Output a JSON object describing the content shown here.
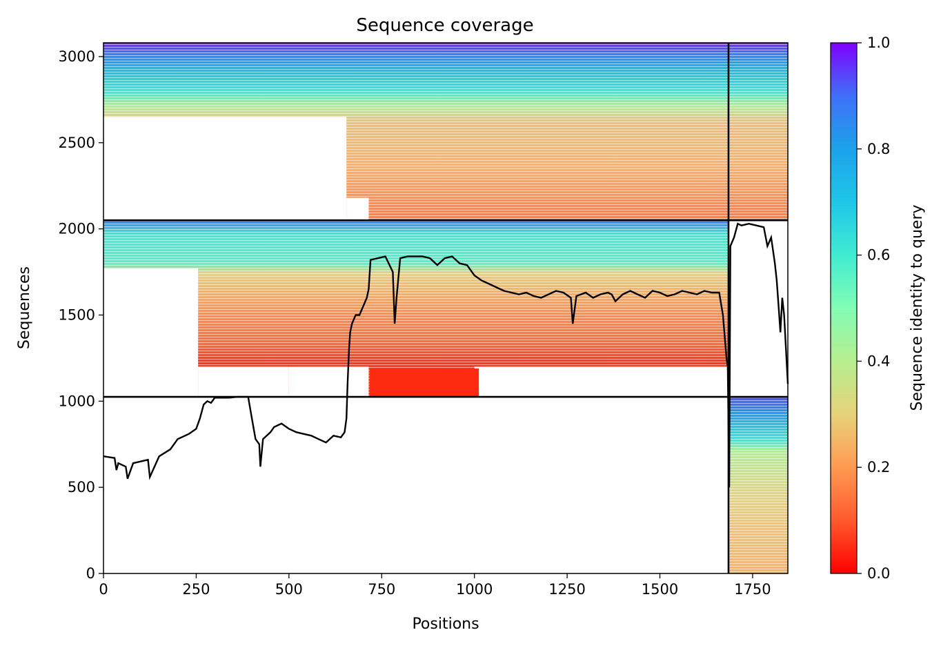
{
  "chart_data": {
    "type": "heatmap",
    "title": "Sequence coverage",
    "xlabel": "Positions",
    "ylabel": "Sequences",
    "xlim": [
      0,
      1845
    ],
    "ylim": [
      0,
      3080
    ],
    "xticks": [
      0,
      250,
      500,
      750,
      1000,
      1250,
      1500,
      1750
    ],
    "yticks": [
      0,
      500,
      1000,
      1500,
      2000,
      2500,
      3000
    ],
    "colorbar": {
      "label": "Sequence identity to query",
      "range": [
        0,
        1
      ],
      "ticks": [
        "0.0",
        "0.2",
        "0.4",
        "0.6",
        "0.8",
        "1.0"
      ],
      "colormap": "rainbow_r"
    },
    "block_dividers": {
      "horizontal": [
        1025,
        2050
      ],
      "vertical_x": 1685
    },
    "blocks": [
      {
        "name": "block-1",
        "x_range": [
          1685,
          1845
        ],
        "y_range": [
          0,
          1025
        ]
      },
      {
        "name": "block-2",
        "x_range": [
          0,
          1685
        ],
        "y_range": [
          1025,
          2050
        ]
      },
      {
        "name": "block-3",
        "x_range": [
          0,
          1845
        ],
        "y_range": [
          2050,
          3080
        ]
      }
    ],
    "series": [
      {
        "type": "line",
        "color": "#000000",
        "x": [
          0,
          30,
          35,
          40,
          60,
          65,
          80,
          100,
          120,
          125,
          150,
          180,
          200,
          210,
          230,
          250,
          260,
          270,
          280,
          290,
          300,
          320,
          340,
          360,
          390,
          400,
          410,
          420,
          423,
          430,
          450,
          460,
          480,
          500,
          520,
          540,
          560,
          580,
          600,
          620,
          640,
          650,
          655,
          658,
          662,
          665,
          670,
          680,
          690,
          700,
          710,
          715,
          720,
          740,
          760,
          780,
          785,
          790,
          800,
          820,
          840,
          860,
          880,
          900,
          920,
          940,
          960,
          980,
          990,
          1000,
          1020,
          1040,
          1060,
          1080,
          1100,
          1120,
          1140,
          1160,
          1180,
          1200,
          1220,
          1240,
          1260,
          1265,
          1275,
          1300,
          1320,
          1340,
          1360,
          1370,
          1380,
          1400,
          1420,
          1440,
          1460,
          1480,
          1500,
          1520,
          1540,
          1560,
          1580,
          1600,
          1620,
          1640,
          1660,
          1670,
          1680,
          1683,
          1687,
          1690,
          1700,
          1710,
          1720,
          1740,
          1760,
          1780,
          1790,
          1800,
          1810,
          1815,
          1820,
          1825,
          1830,
          1835,
          1840,
          1845
        ],
        "y": [
          680,
          670,
          600,
          640,
          620,
          550,
          640,
          650,
          660,
          560,
          680,
          720,
          780,
          790,
          810,
          840,
          900,
          980,
          1000,
          990,
          1020,
          1020,
          1020,
          1025,
          1025,
          900,
          780,
          750,
          620,
          780,
          820,
          850,
          870,
          840,
          820,
          810,
          800,
          780,
          760,
          800,
          790,
          820,
          900,
          1100,
          1300,
          1400,
          1450,
          1500,
          1500,
          1550,
          1600,
          1650,
          1820,
          1830,
          1840,
          1750,
          1450,
          1600,
          1830,
          1840,
          1840,
          1840,
          1830,
          1790,
          1830,
          1840,
          1800,
          1790,
          1760,
          1730,
          1700,
          1680,
          1660,
          1640,
          1630,
          1620,
          1630,
          1610,
          1600,
          1620,
          1640,
          1630,
          1600,
          1450,
          1610,
          1630,
          1600,
          1620,
          1630,
          1620,
          1580,
          1620,
          1640,
          1620,
          1600,
          1640,
          1630,
          1610,
          1620,
          1640,
          1630,
          1620,
          1640,
          1630,
          1630,
          1500,
          1240,
          1200,
          500,
          1900,
          1950,
          2030,
          2020,
          2030,
          2020,
          2010,
          1900,
          1950,
          1800,
          1700,
          1550,
          1400,
          1600,
          1500,
          1300,
          1100
        ]
      }
    ]
  }
}
